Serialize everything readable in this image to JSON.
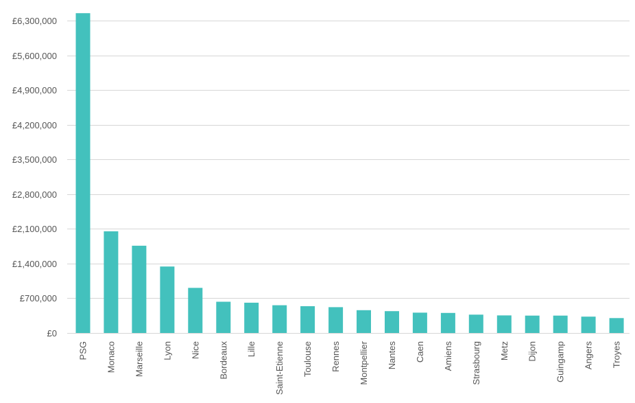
{
  "chart_data": {
    "type": "bar",
    "title": "",
    "xlabel": "",
    "ylabel": "",
    "ylim": [
      0,
      6300000
    ],
    "y_ticks": [
      0,
      700000,
      1400000,
      2100000,
      2800000,
      3500000,
      4200000,
      4900000,
      5600000,
      6300000
    ],
    "y_tick_labels": [
      "£0",
      "£700,000",
      "£1,400,000",
      "£2,100,000",
      "£2,800,000",
      "£3,500,000",
      "£4,200,000",
      "£4,900,000",
      "£5,600,000",
      "£6,300,000"
    ],
    "grid": true,
    "categories": [
      "PSG",
      "Monaco",
      "Marseille",
      "Lyon",
      "Nice",
      "Bordeaux",
      "Lille",
      "Saint-Etienne",
      "Toulouse",
      "Rennes",
      "Montpellier",
      "Nantes",
      "Caen",
      "Amiens",
      "Strasbourg",
      "Metz",
      "Dijon",
      "Guingamp",
      "Angers",
      "Troyes"
    ],
    "values": [
      6450000,
      2050000,
      1760000,
      1340000,
      910000,
      630000,
      610000,
      560000,
      540000,
      520000,
      460000,
      440000,
      410000,
      405000,
      370000,
      355000,
      350000,
      350000,
      330000,
      300000
    ],
    "bar_color": "#43c1bd"
  }
}
